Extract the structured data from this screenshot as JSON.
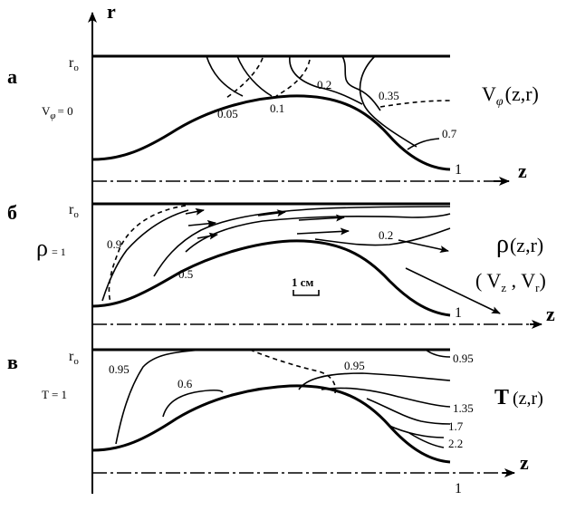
{
  "axis": {
    "r": "r",
    "z": "z",
    "one": "1",
    "r0_base": "r",
    "r0_sub": "o"
  },
  "panels": [
    {
      "letter": "а",
      "condition": "V",
      "condition_sub": "φ",
      "condition_rest": "= 0",
      "function": "V",
      "function_sub": "φ",
      "function_args": "(z,r)",
      "levels": [
        "0.05",
        "0.1",
        "0.2",
        "0.35",
        "0.7"
      ]
    },
    {
      "letter": "б",
      "condition": "ρ",
      "condition_rest": "= 1",
      "function": "ρ",
      "function_args": "(z,r)",
      "vector": "( V",
      "vector_z": "z",
      "vector_sep": " , V",
      "vector_r": "r",
      "vector_close": ")",
      "levels": [
        "0.9",
        "0.5",
        "0.2"
      ],
      "scale": "1 см"
    },
    {
      "letter": "в",
      "condition": "T = 1",
      "function": "T",
      "function_args": "(z,r)",
      "levels": [
        "0.95",
        "0.6",
        "0.95",
        "0.95",
        "1.35",
        "1.7",
        "2.2"
      ]
    }
  ]
}
